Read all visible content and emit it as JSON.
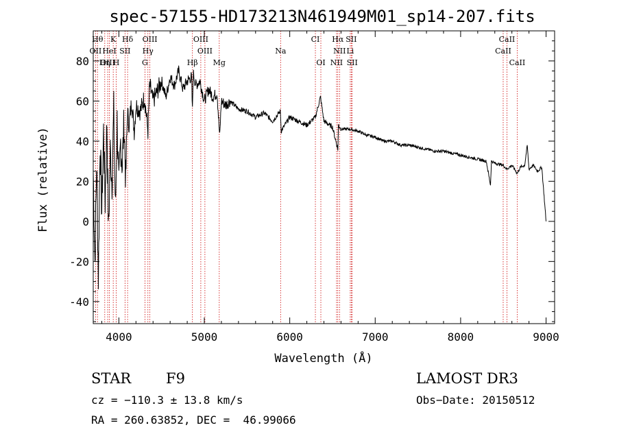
{
  "chart_data": {
    "type": "line",
    "title": "spec-57155-HD173213N461949M01_sp14-207.fits",
    "xlabel": "Wavelength (Å)",
    "ylabel": "Flux (relative)",
    "xlim": [
      3700,
      9100
    ],
    "ylim": [
      -51,
      95
    ],
    "x_ticks": [
      4000,
      5000,
      6000,
      7000,
      8000,
      9000
    ],
    "y_ticks": [
      -40,
      -20,
      0,
      20,
      40,
      60,
      80
    ],
    "series": [
      {
        "name": "flux",
        "x": [
          3700,
          3720,
          3740,
          3760,
          3780,
          3800,
          3820,
          3840,
          3860,
          3880,
          3900,
          3920,
          3940,
          3960,
          3980,
          4000,
          4020,
          4040,
          4060,
          4080,
          4100,
          4120,
          4150,
          4180,
          4200,
          4250,
          4300,
          4340,
          4360,
          4400,
          4450,
          4500,
          4550,
          4600,
          4650,
          4700,
          4750,
          4800,
          4850,
          4861,
          4870,
          4900,
          4950,
          5000,
          5050,
          5100,
          5150,
          5180,
          5200,
          5250,
          5300,
          5400,
          5500,
          5600,
          5700,
          5800,
          5890,
          5900,
          6000,
          6100,
          6200,
          6300,
          6360,
          6400,
          6500,
          6563,
          6570,
          6600,
          6700,
          6800,
          6900,
          7000,
          7100,
          7200,
          7300,
          7400,
          7500,
          7600,
          7700,
          7800,
          7900,
          8000,
          8100,
          8200,
          8300,
          8350,
          8360,
          8400,
          8500,
          8540,
          8600,
          8662,
          8700,
          8750,
          8780,
          8800,
          8850,
          8900,
          8950,
          9000
        ],
        "y": [
          25,
          -20,
          30,
          -28,
          40,
          5,
          45,
          10,
          50,
          -5,
          35,
          20,
          55,
          5,
          50,
          15,
          40,
          28,
          50,
          20,
          55,
          48,
          60,
          45,
          58,
          55,
          62,
          45,
          68,
          60,
          65,
          70,
          62,
          72,
          68,
          75,
          66,
          70,
          72,
          55,
          74,
          68,
          70,
          60,
          66,
          62,
          64,
          42,
          60,
          58,
          60,
          56,
          55,
          52,
          54,
          50,
          55,
          45,
          52,
          50,
          48,
          52,
          62,
          50,
          47,
          36,
          48,
          46,
          46,
          45,
          43,
          42,
          40,
          40,
          38,
          38,
          37,
          36,
          35,
          35,
          34,
          33,
          32,
          31,
          30,
          18,
          30,
          29,
          28,
          26,
          28,
          24,
          27,
          28,
          38,
          26,
          28,
          25,
          27,
          0
        ]
      }
    ],
    "spectral_lines": [
      {
        "label": "Hθ",
        "row": 1,
        "wavelength": 3750
      },
      {
        "label": "K",
        "row": 1,
        "wavelength": 3934
      },
      {
        "label": "Hδ",
        "row": 1,
        "wavelength": 4102
      },
      {
        "label": "OIII",
        "row": 1,
        "wavelength": 4363
      },
      {
        "label": "OIII",
        "row": 1,
        "wavelength": 4959
      },
      {
        "label": "CI",
        "row": 1,
        "wavelength": 6300
      },
      {
        "label": "Hα",
        "row": 1,
        "wavelength": 6563
      },
      {
        "label": "SII",
        "row": 1,
        "wavelength": 6720
      },
      {
        "label": "CaII",
        "row": 1,
        "wavelength": 8542
      },
      {
        "label": "OII",
        "row": 2,
        "wavelength": 3727
      },
      {
        "label": "HeI",
        "row": 2,
        "wavelength": 3889
      },
      {
        "label": "SII",
        "row": 2,
        "wavelength": 4072
      },
      {
        "label": "Hγ",
        "row": 2,
        "wavelength": 4340
      },
      {
        "label": "OIII",
        "row": 2,
        "wavelength": 5007
      },
      {
        "label": "Na",
        "row": 2,
        "wavelength": 5893
      },
      {
        "label": "NII",
        "row": 2,
        "wavelength": 6583
      },
      {
        "label": "Li",
        "row": 2,
        "wavelength": 6708
      },
      {
        "label": "CaII",
        "row": 2,
        "wavelength": 8498
      },
      {
        "label": "OIII",
        "row": 3,
        "wavelength": 3869
      },
      {
        "label": "Hη",
        "row": 3,
        "wavelength": 3835
      },
      {
        "label": "H",
        "row": 3,
        "wavelength": 3969
      },
      {
        "label": "G",
        "row": 3,
        "wavelength": 4305
      },
      {
        "label": "Hβ",
        "row": 3,
        "wavelength": 4861
      },
      {
        "label": "Mg",
        "row": 3,
        "wavelength": 5175
      },
      {
        "label": "OI",
        "row": 3,
        "wavelength": 6364
      },
      {
        "label": "NII",
        "row": 3,
        "wavelength": 6548
      },
      {
        "label": "SII",
        "row": 3,
        "wavelength": 6731
      },
      {
        "label": "CaII",
        "row": 3,
        "wavelength": 8662
      }
    ]
  },
  "info": {
    "object_class": "STAR",
    "subclass": "F9",
    "survey": "LAMOST DR3",
    "cz": "cz = −110.3 ± 13.8 km/s",
    "obs_date": "Obs−Date: 20150512",
    "coords": "RA = 260.63852, DEC =  46.99066"
  },
  "colors": {
    "line_marker": "#cc0000",
    "spectrum": "#000000",
    "axes": "#000000"
  }
}
